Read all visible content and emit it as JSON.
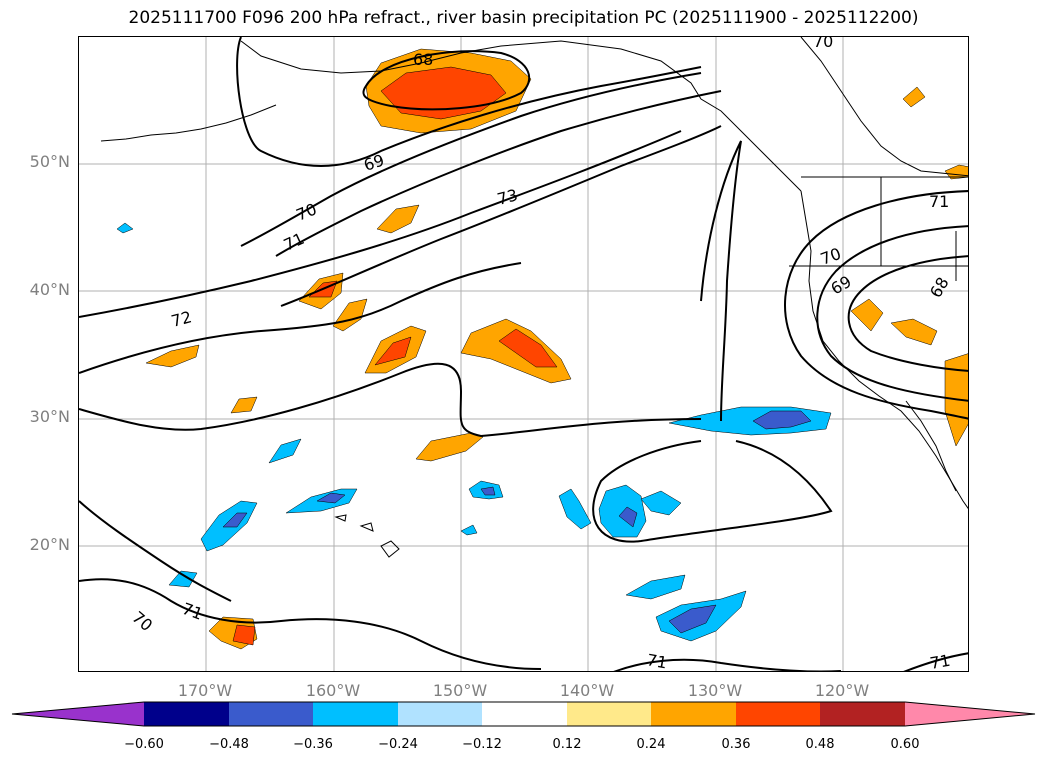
{
  "title": "2025111700 F096 200 hPa refract., river basin precipitation PC (2025111900 - 2025112200)",
  "lat_labels": [
    "50°N",
    "40°N",
    "30°N",
    "20°N"
  ],
  "lon_labels": [
    "170°W",
    "160°W",
    "150°W",
    "140°W",
    "130°W",
    "120°W"
  ],
  "contour_labels": [
    "68",
    "69",
    "70",
    "71",
    "72",
    "73",
    "70",
    "71",
    "70",
    "69",
    "68",
    "71",
    "70",
    "71",
    "71"
  ],
  "colorbar": {
    "tick_labels": [
      "−0.60",
      "−0.48",
      "−0.36",
      "−0.24",
      "−0.12",
      "0.12",
      "0.24",
      "0.36",
      "0.48",
      "0.60"
    ],
    "colors": [
      "#9932cc",
      "#00008b",
      "#3a5bcc",
      "#00bfff",
      "#b0e2ff",
      "#ffffff",
      "#ffe98a",
      "#ffa500",
      "#ff4500",
      "#b22222",
      "#ff88aa"
    ]
  },
  "fill_colors": {
    "orange": "#ffa500",
    "red": "#ff4500",
    "cyan": "#00bfff",
    "blue": "#3a5bcc"
  }
}
